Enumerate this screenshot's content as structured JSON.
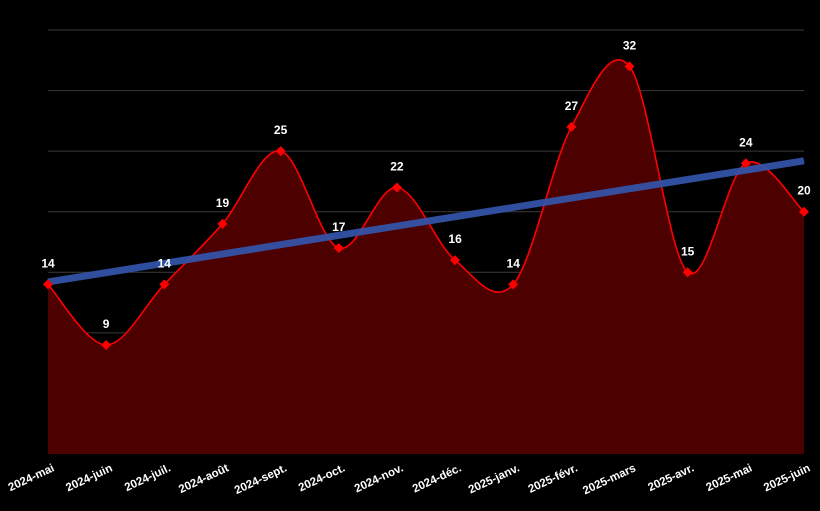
{
  "chart_data": {
    "type": "area",
    "categories": [
      "2024-mai",
      "2024-juin",
      "2024-juil.",
      "2024-août",
      "2024-sept.",
      "2024-oct.",
      "2024-nov.",
      "2024-déc.",
      "2025-janv.",
      "2025-févr.",
      "2025-mars",
      "2025-avr.",
      "2025-mai",
      "2025-juin"
    ],
    "series": [
      {
        "values": [
          14,
          9,
          14,
          19,
          25,
          17,
          22,
          16,
          14,
          27,
          32,
          15,
          24,
          20
        ]
      }
    ],
    "trendline": {
      "start": 14.2,
      "end": 24.2
    },
    "ylim": [
      0,
      35
    ],
    "grid": true,
    "colors": {
      "line": "#ff0000",
      "fill": "#4d0000",
      "marker": "#ff0000",
      "trend": "#3355aa",
      "background": "#000000",
      "grid": "#3a3a3a",
      "text": "#ffffff"
    }
  }
}
